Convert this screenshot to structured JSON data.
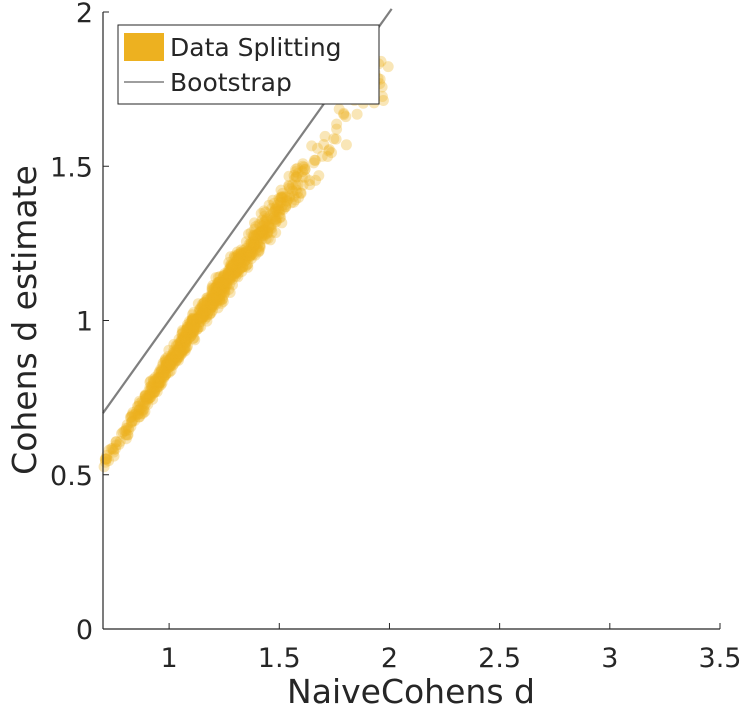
{
  "chart_data": {
    "type": "scatter",
    "title": "",
    "xlabel": "NaiveCohens d",
    "ylabel": "Cohens d estimate",
    "xlim": [
      0.7,
      3.5
    ],
    "ylim": [
      0,
      2
    ],
    "xticks": [
      "1",
      "1.5",
      "2",
      "2.5",
      "3",
      "3.5"
    ],
    "yticks": [
      "0",
      "0.5",
      "1",
      "1.5",
      "2"
    ],
    "grid": false,
    "legend": {
      "placement": "top-left",
      "entries": [
        "Data Splitting",
        "Bootstrap"
      ]
    },
    "series": [
      {
        "name": "Data Splitting",
        "kind": "scatter",
        "color": "#EDB120",
        "trend": {
          "x": [
            0.7,
            0.8,
            0.9,
            1.0,
            1.1,
            1.2,
            1.3,
            1.4,
            1.5,
            1.6,
            1.7,
            1.8,
            1.9,
            2.0
          ],
          "y": [
            0.53,
            0.64,
            0.75,
            0.86,
            0.97,
            1.07,
            1.17,
            1.27,
            1.37,
            1.46,
            1.55,
            1.64,
            1.73,
            1.82
          ]
        },
        "n_points": 900
      },
      {
        "name": "Bootstrap",
        "kind": "line",
        "color": "#7f7f7f",
        "x": [
          0.7,
          2.01
        ],
        "y": [
          0.7,
          2.01
        ]
      }
    ]
  }
}
